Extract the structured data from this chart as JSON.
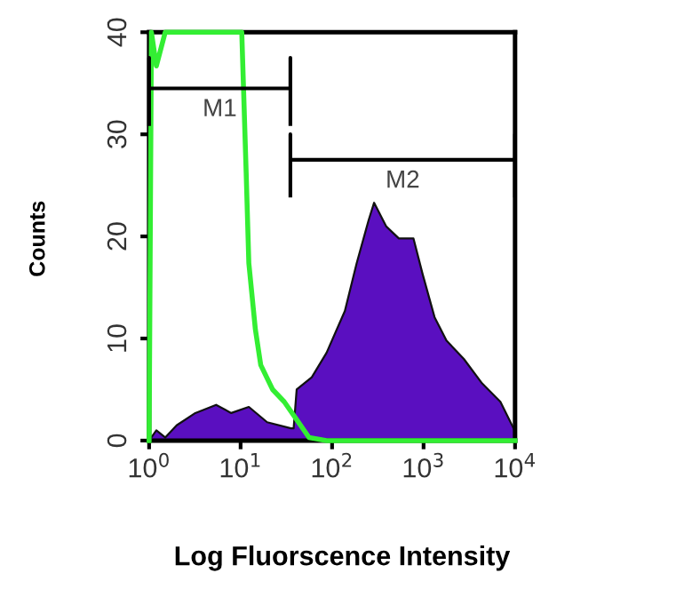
{
  "chart_data": {
    "type": "area",
    "xlabel": "Log Fluorscence Intensity",
    "ylabel": "Counts",
    "log": "x",
    "xlim": [
      1,
      10000
    ],
    "xticks": [
      {
        "value": 1,
        "label": "10$^{0}$"
      },
      {
        "value": 10,
        "label": "10$^{1}$"
      },
      {
        "value": 100,
        "label": "10$^{2}$"
      },
      {
        "value": 1000,
        "label": "10$^{3}$"
      },
      {
        "value": 10000,
        "label": "10$^{4}$"
      }
    ],
    "ylim": [
      0,
      40
    ],
    "yticks": [
      0,
      10,
      20,
      30,
      40
    ],
    "grid": false,
    "legend": false,
    "series": [
      {
        "color": "#5a0fc0",
        "x": [
          1,
          1.2,
          1.5,
          2.0,
          3.2,
          5.4,
          7.9,
          12.3,
          19.5,
          35.5,
          38,
          41,
          60,
          87,
          138,
          186,
          251,
          288,
          389,
          537,
          776,
          977,
          1318,
          1778,
          2754,
          4365,
          6918,
          10000
        ],
        "values": [
          0,
          1.0,
          0.3,
          1.5,
          2.7,
          3.5,
          2.7,
          3.3,
          1.8,
          1.2,
          1.2,
          5,
          6.2,
          8.6,
          12.7,
          17.4,
          21.6,
          23.3,
          21,
          19.8,
          19.8,
          16.3,
          12.1,
          9.8,
          8,
          5.6,
          3.8,
          0.9
        ]
      },
      {
        "type": "line",
        "color": "#33ee33",
        "x": [
          1,
          1.06,
          1.2,
          1.5,
          10.3,
          11.5,
          12.3,
          14.5,
          16.6,
          22.4,
          30,
          40.7,
          56,
          87,
          10000
        ],
        "values": [
          0,
          40,
          36.7,
          40,
          40,
          26.3,
          17.4,
          10.9,
          7.4,
          5,
          3.8,
          2.1,
          0.3,
          0,
          0
        ]
      },
      {
        "type": "line",
        "name": "M1",
        "color": "#000000",
        "x": [
          1,
          1,
          1,
          35,
          35,
          35
        ],
        "values": [
          31,
          37.5,
          34.5,
          34.5,
          37.5,
          31
        ]
      },
      {
        "type": "line",
        "name": "M2",
        "color": "#000000",
        "x": [
          35,
          35,
          35,
          10000,
          10000,
          10000
        ],
        "values": [
          24,
          30,
          27.5,
          27.5,
          30,
          24
        ]
      }
    ]
  }
}
